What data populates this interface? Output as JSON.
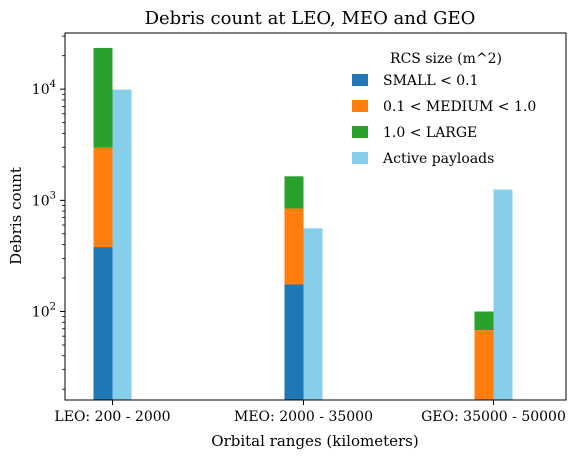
{
  "chart_data": {
    "type": "bar",
    "title": "Debris count at LEO, MEO and GEO",
    "xlabel": "Orbital ranges (kilometers)",
    "ylabel": "Debris count",
    "yscale": "log",
    "ylim": [
      16,
      32000
    ],
    "categories": [
      "LEO: 200 - 2000",
      "MEO: 2000 - 35000",
      "GEO: 35000 - 50000"
    ],
    "stacked_series": [
      {
        "name": "SMALL < 0.1",
        "color": "#1f77b4",
        "values": [
          380,
          175,
          0
        ]
      },
      {
        "name": "0.1 < MEDIUM < 1.0",
        "color": "#ff7f0e",
        "values": [
          2600,
          670,
          68
        ]
      },
      {
        "name": "1.0 < LARGE",
        "color": "#2ca02c",
        "values": [
          20500,
          800,
          32
        ]
      }
    ],
    "side_series": {
      "name": "Active payloads",
      "color": "#87ceeb",
      "values": [
        9900,
        560,
        1250
      ]
    },
    "yticks": [
      {
        "base": "10",
        "exp": "2",
        "value": 100
      },
      {
        "base": "10",
        "exp": "3",
        "value": 1000
      },
      {
        "base": "10",
        "exp": "4",
        "value": 10000
      }
    ],
    "legend": {
      "title": "RCS size (m^2)",
      "position": "top-right"
    }
  }
}
